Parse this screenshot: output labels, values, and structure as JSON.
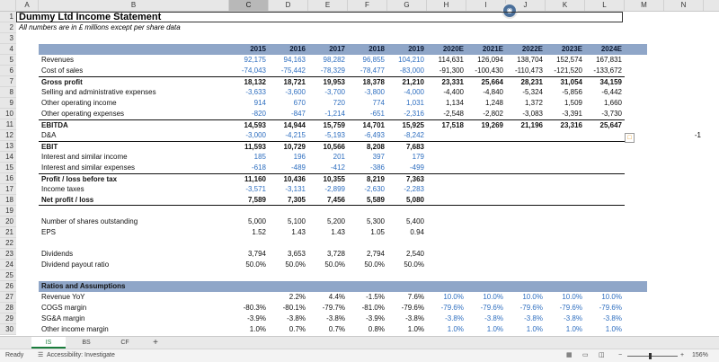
{
  "columns": [
    "A",
    "B",
    "C",
    "D",
    "E",
    "F",
    "G",
    "H",
    "I",
    "J",
    "K",
    "L",
    "M",
    "N"
  ],
  "selected_column": "C",
  "title": "Dummy Ltd Income Statement",
  "subtitle": "All numbers are in £ millions except per share data",
  "row_numbers": [
    "1",
    "2",
    "3",
    "4",
    "5",
    "6",
    "7",
    "8",
    "9",
    "10",
    "11",
    "12",
    "13",
    "14",
    "15",
    "16",
    "17",
    "18",
    "19",
    "20",
    "21",
    "22",
    "23",
    "24",
    "25",
    "26",
    "27",
    "28",
    "29",
    "30"
  ],
  "years": [
    "2015",
    "2016",
    "2017",
    "2018",
    "2019",
    "2020E",
    "2021E",
    "2022E",
    "2023E",
    "2024E"
  ],
  "rows": [
    {
      "label": "Revenues",
      "values": [
        "92,175",
        "94,163",
        "98,282",
        "96,855",
        "104,210",
        "114,631",
        "126,094",
        "138,704",
        "152,574",
        "167,831"
      ]
    },
    {
      "label": "Cost of sales",
      "values": [
        "-74,043",
        "-75,442",
        "-78,329",
        "-78,477",
        "-83,000",
        "-91,300",
        "-100,430",
        "-110,473",
        "-121,520",
        "-133,672"
      ]
    },
    {
      "label": "Gross profit",
      "values": [
        "18,132",
        "18,721",
        "19,953",
        "18,378",
        "21,210",
        "23,331",
        "25,664",
        "28,231",
        "31,054",
        "34,159"
      ]
    },
    {
      "label": "Selling and administrative expenses",
      "values": [
        "-3,633",
        "-3,600",
        "-3,700",
        "-3,800",
        "-4,000",
        "-4,400",
        "-4,840",
        "-5,324",
        "-5,856",
        "-6,442"
      ]
    },
    {
      "label": "Other operating income",
      "values": [
        "914",
        "670",
        "720",
        "774",
        "1,031",
        "1,134",
        "1,248",
        "1,372",
        "1,509",
        "1,660"
      ]
    },
    {
      "label": "Other operating expenses",
      "values": [
        "-820",
        "-847",
        "-1,214",
        "-651",
        "-2,316",
        "-2,548",
        "-2,802",
        "-3,083",
        "-3,391",
        "-3,730"
      ]
    },
    {
      "label": "EBITDA",
      "values": [
        "14,593",
        "14,944",
        "15,759",
        "14,701",
        "15,925",
        "17,518",
        "19,269",
        "21,196",
        "23,316",
        "25,647"
      ]
    },
    {
      "label": "D&A",
      "values": [
        "-3,000",
        "-4,215",
        "-5,193",
        "-6,493",
        "-8,242",
        "",
        "",
        "",
        "",
        ""
      ]
    },
    {
      "label": "EBIT",
      "values": [
        "11,593",
        "10,729",
        "10,566",
        "8,208",
        "7,683",
        "",
        "",
        "",
        "",
        ""
      ]
    },
    {
      "label": "Interest and similar income",
      "values": [
        "185",
        "196",
        "201",
        "397",
        "179",
        "",
        "",
        "",
        "",
        ""
      ]
    },
    {
      "label": "Interest and similar expenses",
      "values": [
        "-618",
        "-489",
        "-412",
        "-386",
        "-499",
        "",
        "",
        "",
        "",
        ""
      ]
    },
    {
      "label": "Profit / loss before tax",
      "values": [
        "11,160",
        "10,436",
        "10,355",
        "8,219",
        "7,363",
        "",
        "",
        "",
        "",
        ""
      ]
    },
    {
      "label": "Income taxes",
      "values": [
        "-3,571",
        "-3,131",
        "-2,899",
        "-2,630",
        "-2,283",
        "",
        "",
        "",
        "",
        ""
      ]
    },
    {
      "label": "Net profit / loss",
      "values": [
        "7,589",
        "7,305",
        "7,456",
        "5,589",
        "5,080",
        "",
        "",
        "",
        "",
        ""
      ]
    },
    {
      "label": "Number of shares outstanding",
      "values": [
        "5,000",
        "5,100",
        "5,200",
        "5,300",
        "5,400",
        "",
        "",
        "",
        "",
        ""
      ]
    },
    {
      "label": "EPS",
      "values": [
        "1.52",
        "1.43",
        "1.43",
        "1.05",
        "0.94",
        "",
        "",
        "",
        "",
        ""
      ]
    },
    {
      "label": "Dividends",
      "values": [
        "3,794",
        "3,653",
        "3,728",
        "2,794",
        "2,540",
        "",
        "",
        "",
        "",
        ""
      ]
    },
    {
      "label": "Dividend payout ratio",
      "values": [
        "50.0%",
        "50.0%",
        "50.0%",
        "50.0%",
        "50.0%",
        "",
        "",
        "",
        "",
        ""
      ]
    },
    {
      "label": "Ratios and Assumptions",
      "values": [
        "",
        "",
        "",
        "",
        "",
        "",
        "",
        "",
        "",
        ""
      ]
    },
    {
      "label": "Revenue YoY",
      "values": [
        "",
        "2.2%",
        "4.4%",
        "-1.5%",
        "7.6%",
        "10.0%",
        "10.0%",
        "10.0%",
        "10.0%",
        "10.0%"
      ]
    },
    {
      "label": "COGS margin",
      "values": [
        "-80.3%",
        "-80.1%",
        "-79.7%",
        "-81.0%",
        "-79.6%",
        "-79.6%",
        "-79.6%",
        "-79.6%",
        "-79.6%",
        "-79.6%"
      ]
    },
    {
      "label": "SG&A margin",
      "values": [
        "-3.9%",
        "-3.8%",
        "-3.8%",
        "-3.9%",
        "-3.8%",
        "-3.8%",
        "-3.8%",
        "-3.8%",
        "-3.8%",
        "-3.8%"
      ]
    },
    {
      "label": "Other income margin",
      "values": [
        "1.0%",
        "0.7%",
        "0.7%",
        "0.8%",
        "1.0%",
        "1.0%",
        "1.0%",
        "1.0%",
        "1.0%",
        "1.0%"
      ]
    }
  ],
  "side_value": "-1",
  "sheet_tabs": [
    "IS",
    "BS",
    "CF"
  ],
  "add_sheet": "+",
  "status": {
    "ready": "Ready",
    "accessibility": "Accessibility: Investigate",
    "zoom": "156%",
    "zoom_minus": "−",
    "zoom_plus": "+"
  },
  "colors": {
    "input_blue": "#2f6fc0",
    "header_band": "#8fa6c8",
    "active_tab": "#1a7d3c"
  }
}
